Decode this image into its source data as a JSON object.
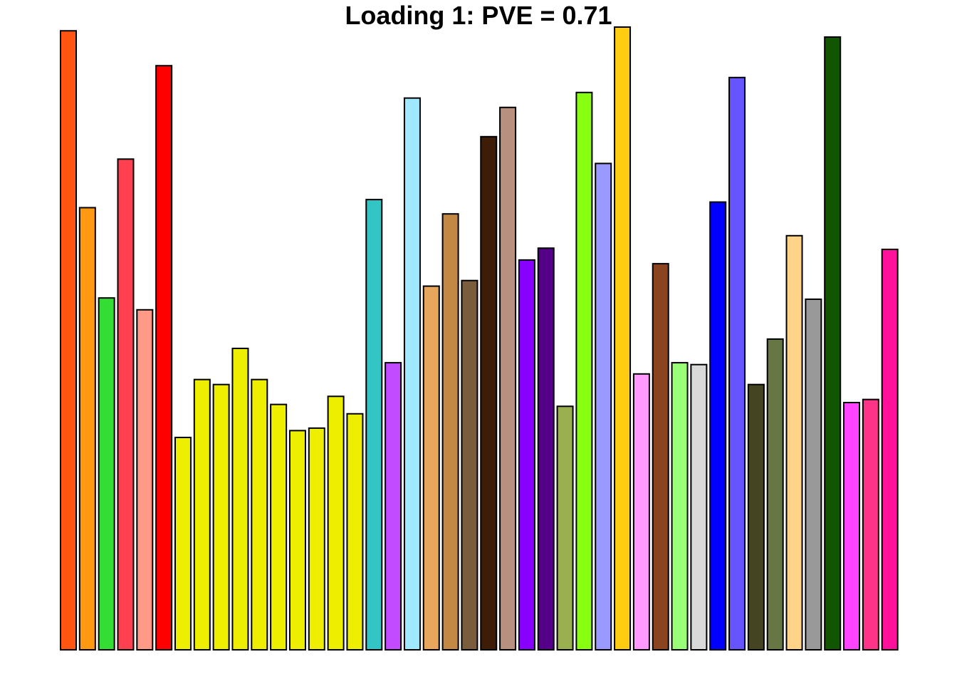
{
  "chart_data": {
    "type": "bar",
    "title": "Loading 1: PVE = 0.71",
    "xlabel": "",
    "ylabel": "",
    "ylim": [
      0,
      1
    ],
    "grid": false,
    "legend": "none",
    "axes_shown": false,
    "values": [
      0.994,
      0.71,
      0.565,
      0.788,
      0.546,
      0.938,
      0.341,
      0.434,
      0.426,
      0.484,
      0.434,
      0.394,
      0.352,
      0.356,
      0.407,
      0.379,
      0.723,
      0.461,
      0.886,
      0.584,
      0.7,
      0.593,
      0.824,
      0.871,
      0.626,
      0.645,
      0.391,
      0.895,
      0.781,
      1.0,
      0.443,
      0.62,
      0.461,
      0.458,
      0.719,
      0.919,
      0.426,
      0.499,
      0.665,
      0.563,
      0.984,
      0.397,
      0.402,
      0.643
    ],
    "colors": [
      "#FF5511",
      "#FF9911",
      "#33DD33",
      "#FF4050",
      "#FF9A88",
      "#FF0000",
      "#EEEE00",
      "#EEEE00",
      "#EEEE00",
      "#EEEE00",
      "#EEEE00",
      "#EEEE00",
      "#EEEE00",
      "#EEEE00",
      "#EEEE00",
      "#EEEE00",
      "#33C4C4",
      "#C24AFF",
      "#A0E8FF",
      "#E6A75C",
      "#C48845",
      "#7A5D3C",
      "#3D1D08",
      "#B89080",
      "#8800FF",
      "#550088",
      "#9AAF4F",
      "#88FF11",
      "#9999FF",
      "#FFCC11",
      "#FF99FF",
      "#8A4520",
      "#99FF77",
      "#D9D9D9",
      "#0000FF",
      "#6655FF",
      "#444422",
      "#667744",
      "#FFD488",
      "#999999",
      "#115500",
      "#FF44FF",
      "#FF3388",
      "#FF1199"
    ]
  }
}
